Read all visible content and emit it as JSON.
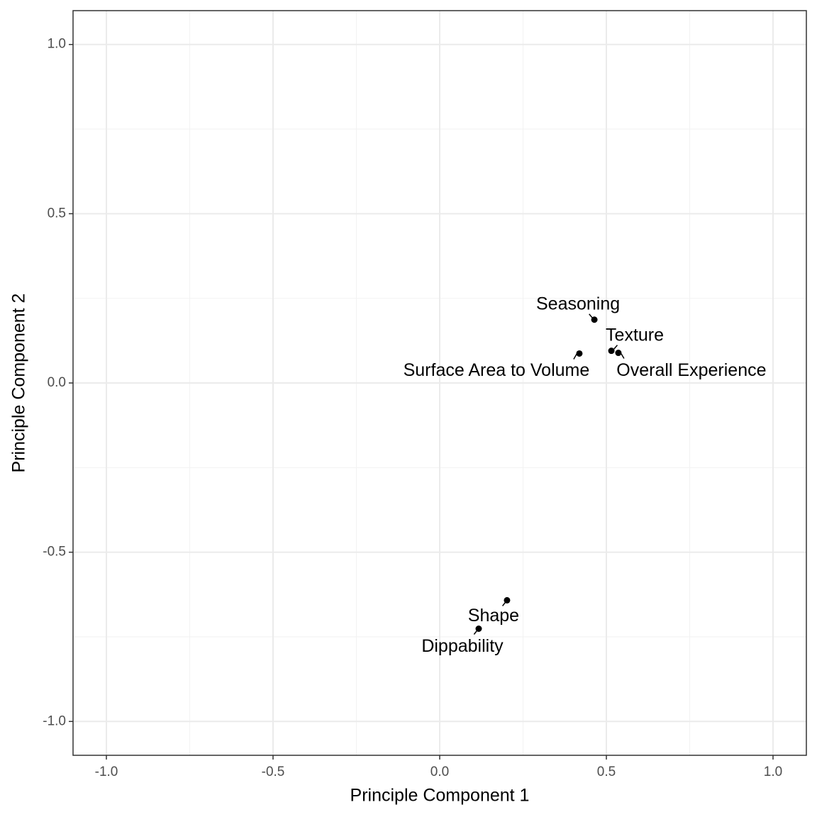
{
  "chart_data": {
    "type": "scatter",
    "x_label": "Principle Component 1",
    "y_label": "Principle Component 2",
    "labels": [
      "Seasoning",
      "Texture",
      "Overall Experience",
      "Surface Area to Volume",
      "Shape",
      "Dippability"
    ],
    "x": [
      0.464,
      0.515,
      0.536,
      0.419,
      0.202,
      0.117
    ],
    "y": [
      0.187,
      0.095,
      0.089,
      0.087,
      -0.642,
      -0.726
    ],
    "color": "#000000",
    "xlim": [
      -1.1,
      1.1
    ],
    "ylim": [
      -1.1,
      1.1
    ],
    "xticks": [
      {
        "value": -1,
        "label": "-1.0"
      },
      {
        "value": -0.5,
        "label": "-0.5"
      },
      {
        "value": 0,
        "label": "0.0"
      },
      {
        "value": 0.5,
        "label": "0.5"
      },
      {
        "value": 1,
        "label": "1.0"
      }
    ],
    "yticks": [
      {
        "value": -1,
        "label": "-1.0"
      },
      {
        "value": -0.5,
        "label": "-0.5"
      },
      {
        "value": 0,
        "label": "0.0"
      },
      {
        "value": 0.5,
        "label": "0.5"
      },
      {
        "value": 1,
        "label": "1.0"
      }
    ],
    "minor_grid": [
      -0.75,
      -0.25,
      0.25,
      0.75
    ],
    "grid": true
  }
}
